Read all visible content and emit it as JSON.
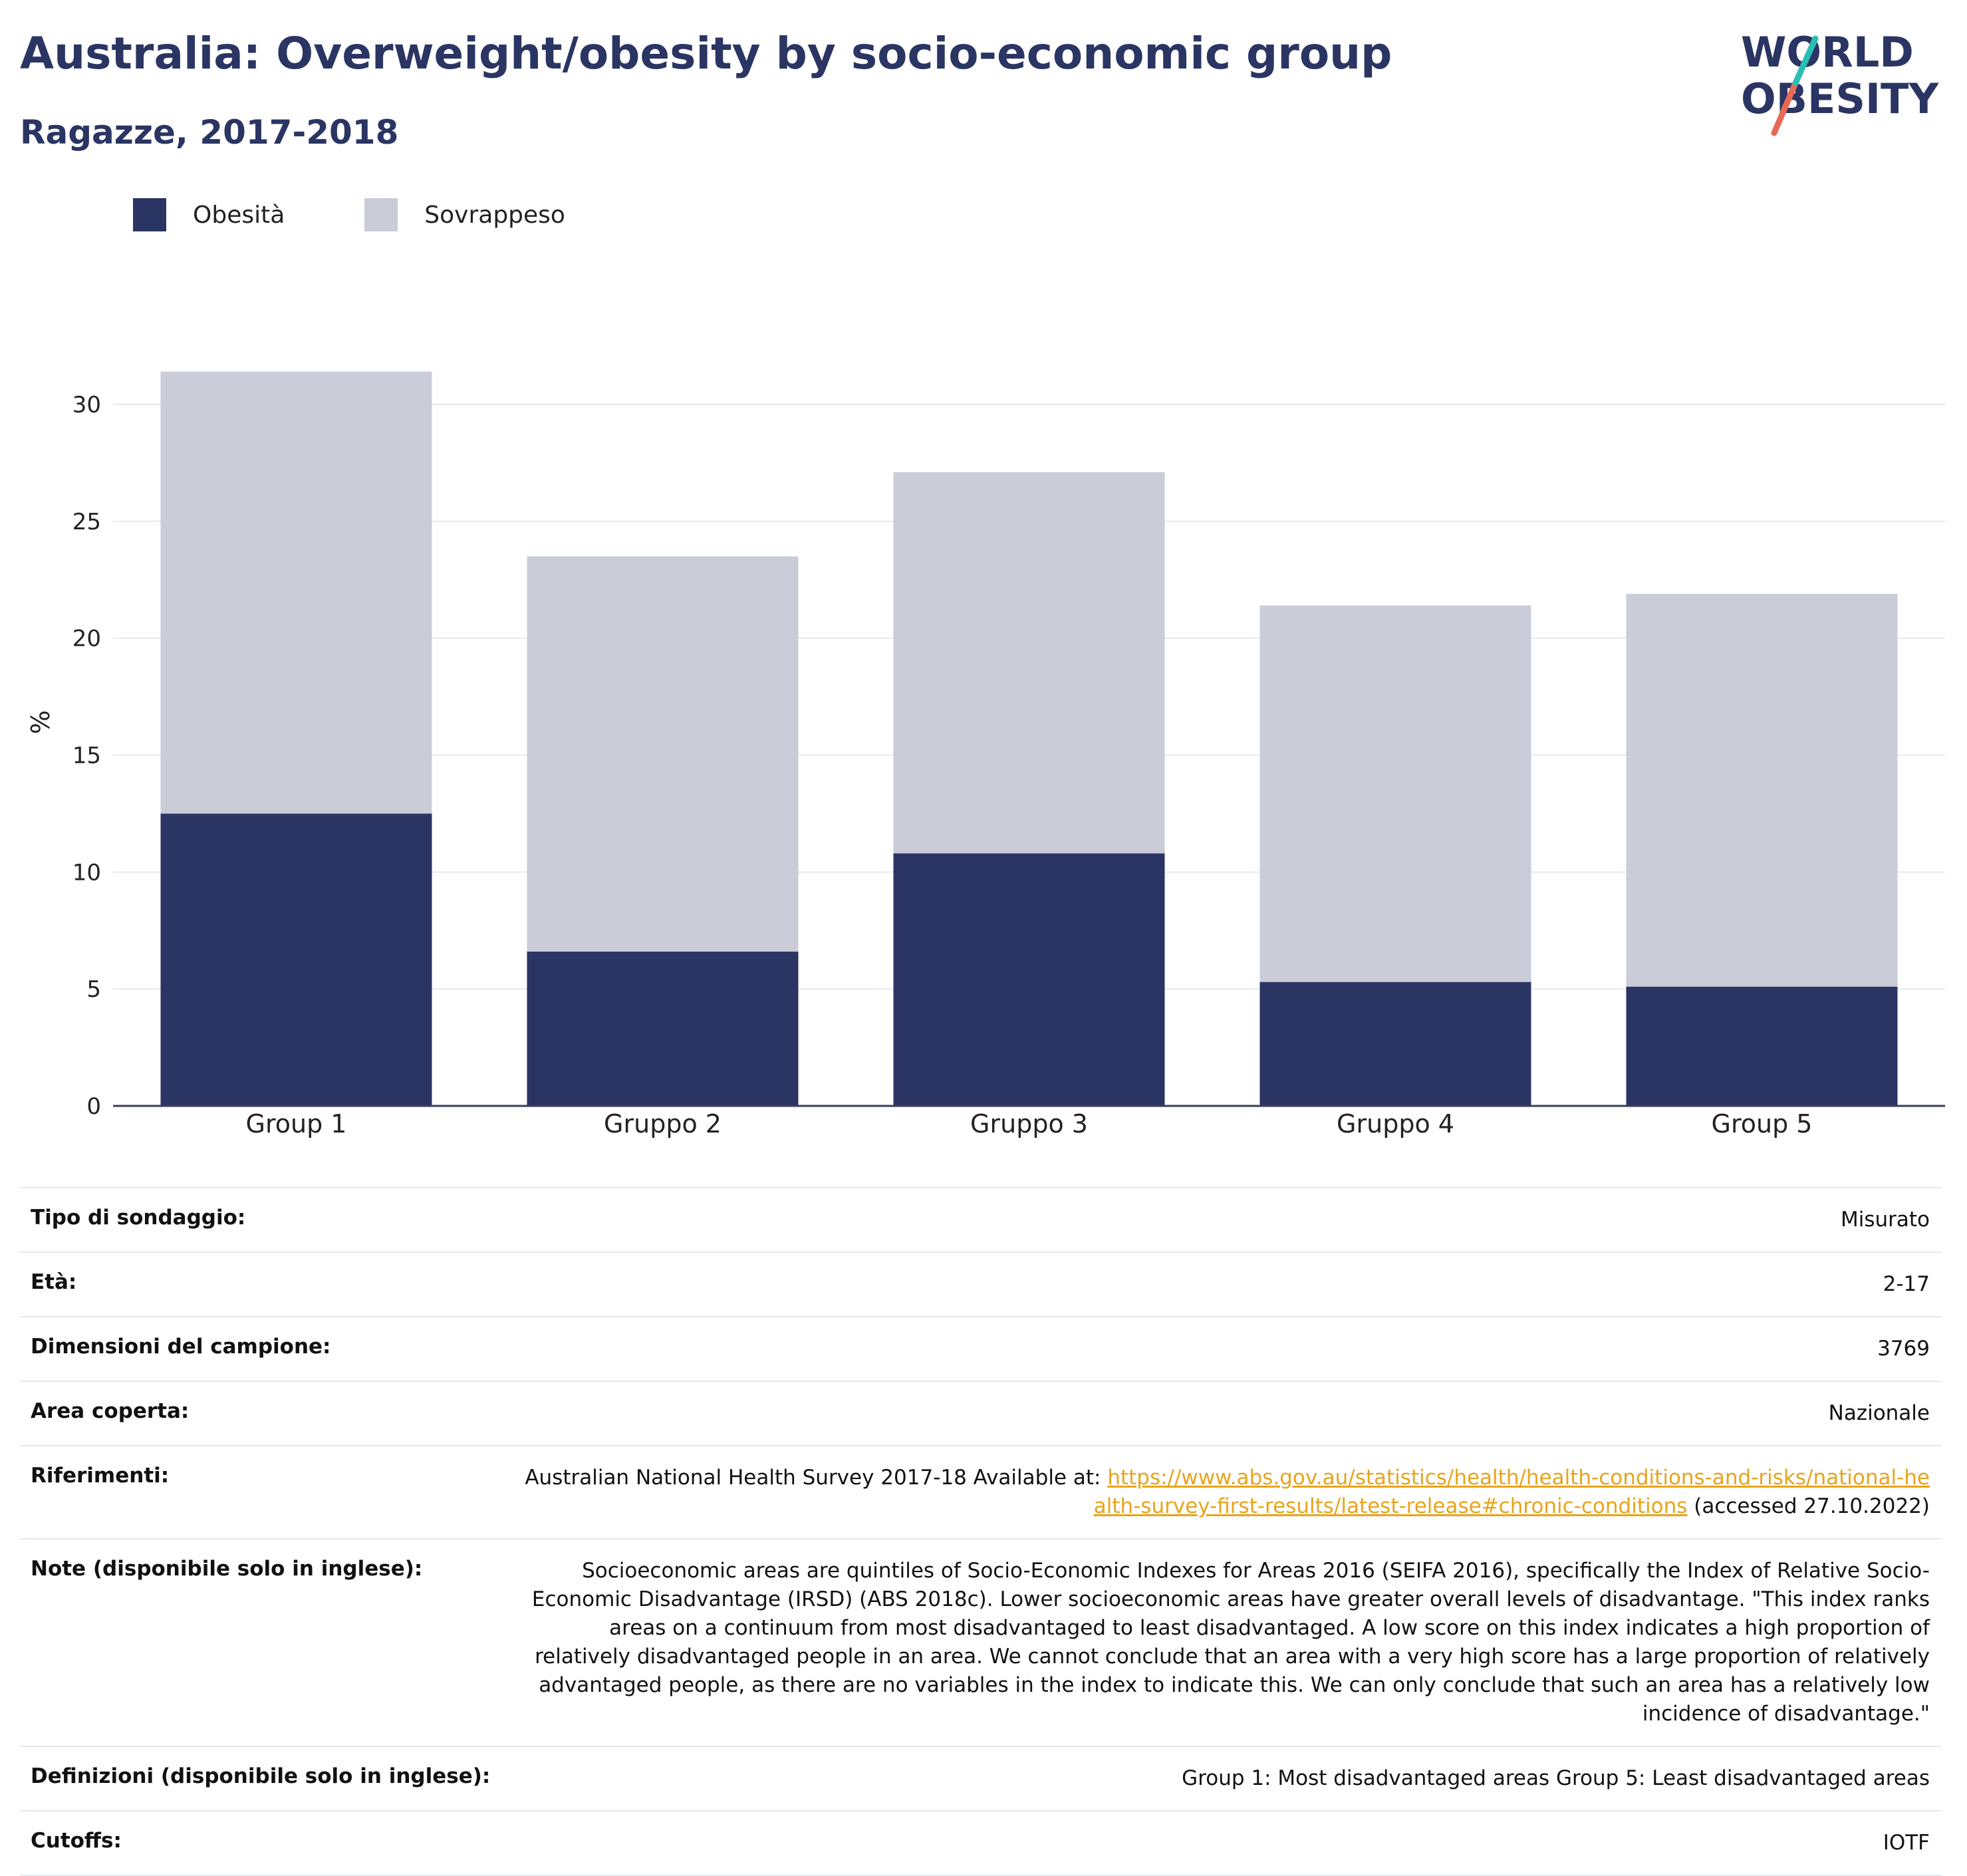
{
  "title": "Australia: Overweight/obesity by socio-economic group",
  "subtitle": "Ragazze, 2017-2018",
  "logo": {
    "line1": "WORLD",
    "line2": "OBESITY"
  },
  "colors": {
    "obesity": "#2a3563",
    "overweight": "#caccd8",
    "title": "#2a3563",
    "link": "#e8a41b"
  },
  "chart_data": {
    "type": "bar",
    "stacked": true,
    "categories": [
      "Group 1",
      "Gruppo 2",
      "Gruppo 3",
      "Gruppo 4",
      "Group 5"
    ],
    "series": [
      {
        "name": "Obesità",
        "color": "#2a3563",
        "values": [
          12.5,
          6.6,
          10.8,
          5.3,
          5.1
        ]
      },
      {
        "name": "Sovrappeso",
        "color": "#caccd8",
        "values": [
          18.9,
          16.9,
          16.3,
          16.1,
          16.8
        ]
      }
    ],
    "ylabel": "%",
    "ylim": [
      0,
      32
    ],
    "yticks": [
      0,
      5,
      10,
      15,
      20,
      25,
      30
    ],
    "grid": true,
    "legend_position": "top-left"
  },
  "meta": [
    {
      "label": "Tipo di sondaggio:",
      "value": "Misurato"
    },
    {
      "label": "Età:",
      "value": "2-17"
    },
    {
      "label": "Dimensioni del campione:",
      "value": "3769"
    },
    {
      "label": "Area coperta:",
      "value": "Nazionale"
    },
    {
      "label": "Riferimenti:",
      "value_prefix": "Australian National Health Survey 2017-18 Available at: ",
      "link": "https://www.abs.gov.au/statistics/health/health-conditions-and-risks/national-health-survey-first-results/latest-release#chronic-conditions",
      "value_suffix": " (accessed 27.10.2022)"
    },
    {
      "label": "Note (disponibile solo in inglese):",
      "value": "Socioeconomic areas are quintiles of Socio-Economic Indexes for Areas 2016 (SEIFA 2016), specifically the Index of Relative Socio-Economic Disadvantage (IRSD) (ABS 2018c). Lower socioeconomic areas have greater overall levels of disadvantage. \"This index ranks areas on a continuum from most disadvantaged to least disadvantaged. A low score on this index indicates a high proportion of relatively disadvantaged people in an area. We cannot conclude that an area with a very high score has a large proportion of relatively advantaged people, as there are no variables in the index to indicate this. We can only conclude that such an area has a relatively low incidence of disadvantage.\""
    },
    {
      "label": "Definizioni (disponibile solo in inglese):",
      "value": "Group 1: Most disadvantaged areas Group 5: Least disadvantaged areas"
    },
    {
      "label": "Cutoffs:",
      "value": "IOTF"
    }
  ]
}
